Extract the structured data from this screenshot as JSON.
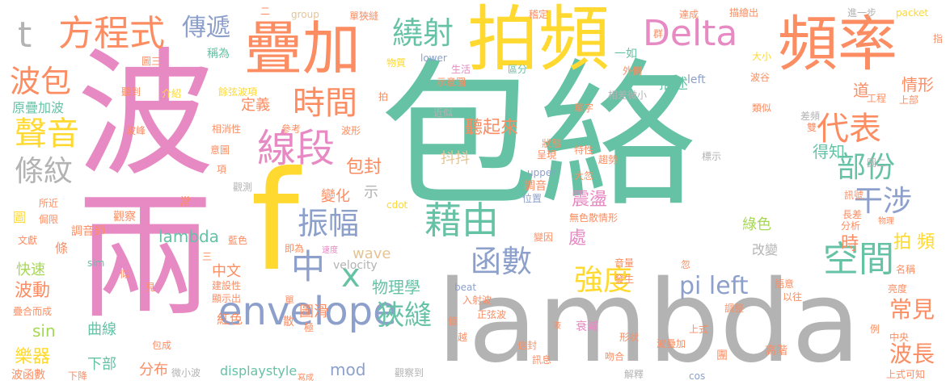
{
  "palette": {
    "teal": "#66c2a5",
    "orange": "#fc8d62",
    "blue": "#8da0cb",
    "pink": "#e78ac3",
    "green": "#a6d854",
    "yellow": "#ffd92f",
    "tan": "#e5c494",
    "gray": "#b3b3b3"
  },
  "words": [
    {
      "text": "包絡"
    },
    {
      "text": "波"
    },
    {
      "text": "兩"
    },
    {
      "text": "lambda"
    },
    {
      "text": "f"
    },
    {
      "text": "拍頻"
    },
    {
      "text": "疊加"
    },
    {
      "text": "頻率"
    },
    {
      "text": "Delta"
    },
    {
      "text": "方程式"
    },
    {
      "text": "t"
    },
    {
      "text": "傳遞"
    },
    {
      "text": "波包"
    },
    {
      "text": "聲音"
    },
    {
      "text": "條紋"
    },
    {
      "text": "時間"
    },
    {
      "text": "線段"
    },
    {
      "text": "代表"
    },
    {
      "text": "部份"
    },
    {
      "text": "繞射"
    },
    {
      "text": "振幅"
    },
    {
      "text": "藉由"
    },
    {
      "text": "干涉"
    },
    {
      "text": "空間"
    },
    {
      "text": "envelope"
    },
    {
      "text": "中"
    },
    {
      "text": "x"
    },
    {
      "text": "函數"
    },
    {
      "text": "強度"
    },
    {
      "text": "pi left"
    },
    {
      "text": "狹縫"
    },
    {
      "text": "常見"
    },
    {
      "text": "波長"
    },
    {
      "text": "拍 頻"
    },
    {
      "text": "時"
    },
    {
      "text": "情形"
    },
    {
      "text": "道"
    },
    {
      "text": "聽起來"
    },
    {
      "text": "抖抖"
    },
    {
      "text": "包封"
    },
    {
      "text": "描述"
    },
    {
      "text": "得知"
    },
    {
      "text": "原疊加波"
    },
    {
      "text": "定義"
    },
    {
      "text": "震盪"
    },
    {
      "text": "變化"
    },
    {
      "text": "示"
    },
    {
      "text": "物理學"
    },
    {
      "text": "圖滑"
    },
    {
      "text": "綠色"
    },
    {
      "text": "改變"
    },
    {
      "text": "處"
    },
    {
      "text": "wave"
    },
    {
      "text": "lambda"
    },
    {
      "text": "中文"
    },
    {
      "text": "快速"
    },
    {
      "text": "波動"
    },
    {
      "text": "sin"
    },
    {
      "text": "曲線"
    },
    {
      "text": "樂器"
    },
    {
      "text": "下部"
    },
    {
      "text": "分布"
    },
    {
      "text": "紅色"
    },
    {
      "text": "displaystyle"
    },
    {
      "text": "mod"
    },
    {
      "text": "圖"
    },
    {
      "text": "條"
    },
    {
      "text": "稱為"
    },
    {
      "text": "圖三"
    },
    {
      "text": "聽到"
    },
    {
      "text": "介紹"
    },
    {
      "text": "group"
    },
    {
      "text": "單狹縫"
    },
    {
      "text": "稽定"
    },
    {
      "text": "達成"
    },
    {
      "text": "描繪出"
    },
    {
      "text": "進一步"
    },
    {
      "text": "packet"
    },
    {
      "text": "lower"
    },
    {
      "text": "生活"
    },
    {
      "text": "物質"
    },
    {
      "text": "示意圖"
    },
    {
      "text": "區分"
    },
    {
      "text": "一如"
    },
    {
      "text": "大小"
    },
    {
      "text": "left"
    },
    {
      "text": "波谷"
    },
    {
      "text": "外側"
    },
    {
      "text": "單字"
    },
    {
      "text": "相差微小"
    },
    {
      "text": "類似"
    },
    {
      "text": "工程"
    },
    {
      "text": "上部"
    },
    {
      "text": "差頻"
    },
    {
      "text": "雙"
    },
    {
      "text": "近似"
    },
    {
      "text": "餘弦波項"
    },
    {
      "text": "相消性"
    },
    {
      "text": "參考"
    },
    {
      "text": "波形"
    },
    {
      "text": "波峰"
    },
    {
      "text": "意圖"
    },
    {
      "text": "觀察"
    },
    {
      "text": "觀測"
    },
    {
      "text": "項"
    },
    {
      "text": "常"
    },
    {
      "text": "所近"
    },
    {
      "text": "侷限"
    },
    {
      "text": "文獻"
    },
    {
      "text": "調音師"
    },
    {
      "text": "cdot"
    },
    {
      "text": "upper"
    },
    {
      "text": "狀態"
    },
    {
      "text": "呈現"
    },
    {
      "text": "特性"
    },
    {
      "text": "趨勢"
    },
    {
      "text": "標示"
    },
    {
      "text": "調音"
    },
    {
      "text": "位置"
    },
    {
      "text": "無色散情形"
    },
    {
      "text": "大忽"
    },
    {
      "text": "變因"
    },
    {
      "text": "訊號"
    },
    {
      "text": "長差"
    },
    {
      "text": "分析"
    },
    {
      "text": "物理"
    },
    {
      "text": "sim"
    },
    {
      "text": "即為"
    },
    {
      "text": "速度"
    },
    {
      "text": "velocity"
    },
    {
      "text": "似"
    },
    {
      "text": "見"
    },
    {
      "text": "建設性"
    },
    {
      "text": "顯示出"
    },
    {
      "text": "單"
    },
    {
      "text": "極"
    },
    {
      "text": "散"
    },
    {
      "text": "藍色"
    },
    {
      "text": "三"
    },
    {
      "text": "疊合而成"
    },
    {
      "text": "包成"
    },
    {
      "text": "下降"
    },
    {
      "text": "波函數"
    },
    {
      "text": "微小波"
    },
    {
      "text": "寫成"
    },
    {
      "text": "觀察到"
    },
    {
      "text": "beat"
    },
    {
      "text": "入射波"
    },
    {
      "text": "正弦波"
    },
    {
      "text": "越"
    },
    {
      "text": "值"
    },
    {
      "text": "信封"
    },
    {
      "text": "訊息"
    },
    {
      "text": "衰減"
    },
    {
      "text": "吻合"
    },
    {
      "text": "形狀"
    },
    {
      "text": "波疊加"
    },
    {
      "text": "團"
    },
    {
      "text": "高階"
    },
    {
      "text": "上式"
    },
    {
      "text": "cos"
    },
    {
      "text": "中央"
    },
    {
      "text": "上式可知"
    },
    {
      "text": "解釋"
    },
    {
      "text": "發生"
    },
    {
      "text": "音量"
    },
    {
      "text": "忽"
    },
    {
      "text": "調整"
    },
    {
      "text": "以往"
    },
    {
      "text": "語意"
    },
    {
      "text": "亮度"
    },
    {
      "text": "名稱"
    },
    {
      "text": "例"
    },
    {
      "text": "指"
    },
    {
      "text": "群"
    },
    {
      "text": "二"
    },
    {
      "text": "拍"
    },
    {
      "text": "液"
    },
    {
      "text": "圖二"
    }
  ]
}
